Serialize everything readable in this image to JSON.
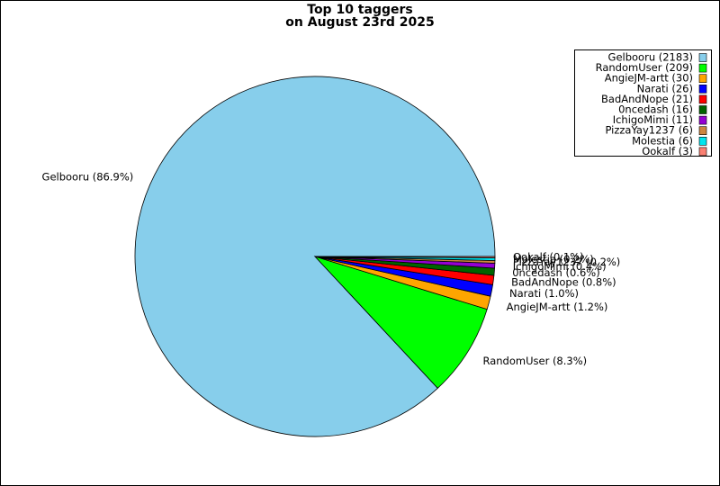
{
  "chart_data": {
    "type": "pie",
    "title_lines": [
      "Top 10 taggers",
      "on August 23rd 2025"
    ],
    "categories": [
      "Gelbooru",
      "RandomUser",
      "AngieJM-artt",
      "Narati",
      "BadAndNope",
      "0ncedash",
      "IchigoMimi",
      "PizzaYay1237",
      "Molestia",
      "Ookalf"
    ],
    "values": [
      2183,
      209,
      30,
      26,
      21,
      16,
      11,
      6,
      6,
      3
    ],
    "legend_labels": [
      "Gelbooru (2183)",
      "RandomUser (209)",
      "AngieJM-artt (30)",
      "Narati (26)",
      "BadAndNope (21)",
      "0ncedash (16)",
      "IchigoMimi (11)",
      "PizzaYay1237 (6)",
      "Molestia (6)",
      "Ookalf (3)"
    ],
    "slice_labels": [
      "Gelbooru (86.9%)",
      "RandomUser (8.3%)",
      "AngieJM-artt (1.2%)",
      "Narati (1.0%)",
      "BadAndNope (0.8%)",
      "0ncedash (0.6%)",
      "IchigoMimi (0.4%)",
      "PizzaYay1237 (0.2%)",
      "Molestia (0.2%)",
      "Ookalf (0.1%)"
    ],
    "colors": [
      "#87ceeb",
      "#00ff00",
      "#ffa500",
      "#0000ff",
      "#ff0000",
      "#006400",
      "#9400d3",
      "#cd853f",
      "#00e5ee",
      "#fa8072"
    ],
    "legend_position": "upper right"
  }
}
